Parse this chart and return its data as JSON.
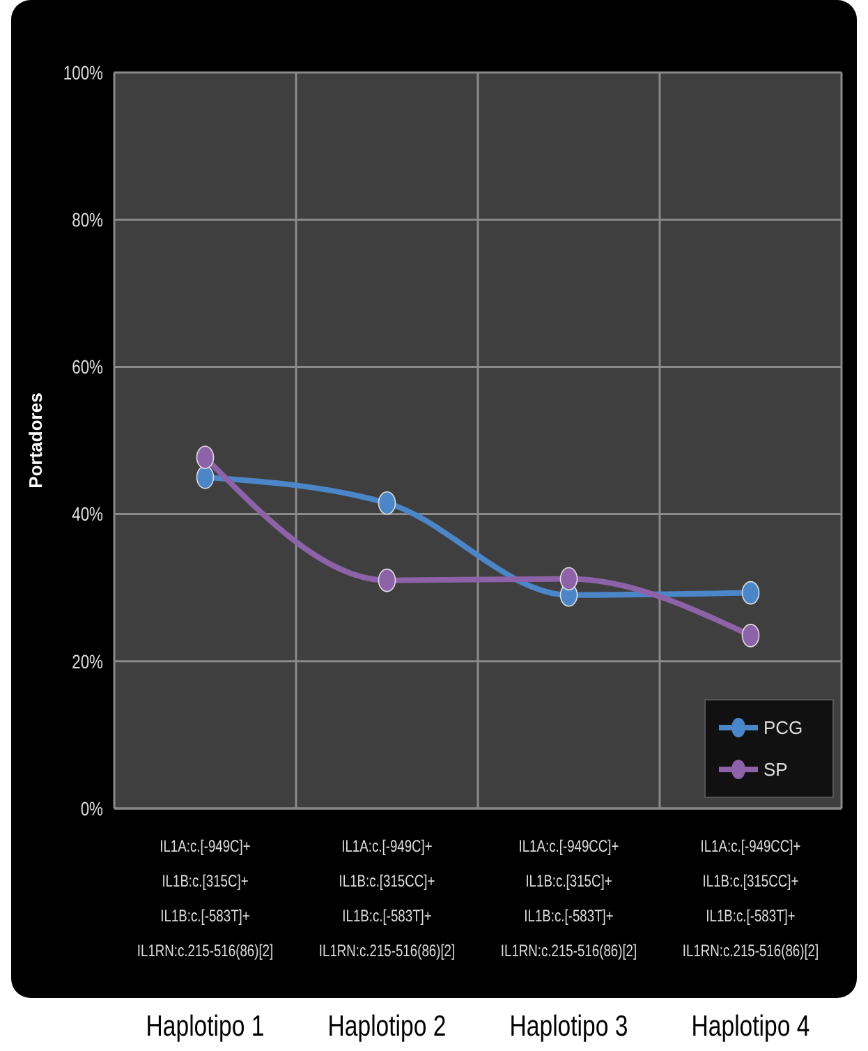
{
  "chart_data": {
    "type": "line",
    "ylabel": "Portadores",
    "categories": [
      "IL1A:c.[-949C]+\nIL1B:c.[315C]+\nIL1B:c.[-583T]+\nIL1RN:c.215-516(86)[2]",
      "IL1A:c.[-949C]+\nIL1B:c.[315CC]+\nIL1B:c.[-583T]+\nIL1RN:c.215-516(86)[2]",
      "IL1A:c.[-949CC]+\nIL1B:c.[315C]+\nIL1B:c.[-583T]+\nIL1RN:c.215-516(86)[2]",
      "IL1A:c.[-949CC]+\nIL1B:c.[315CC]+\nIL1B:c.[-583T]+\nIL1RN:c.215-516(86)[2]"
    ],
    "series": [
      {
        "name": "PCG",
        "color": "#4a86c8",
        "values": [
          45,
          41.5,
          29,
          29.3
        ]
      },
      {
        "name": "SP",
        "color": "#8e62a8",
        "values": [
          47.7,
          31,
          31.2,
          23.5
        ]
      }
    ],
    "ylim": [
      0,
      100
    ],
    "yticks": [
      {
        "value": 0,
        "label": "0%"
      },
      {
        "value": 20,
        "label": "20%"
      },
      {
        "value": 40,
        "label": "40%"
      },
      {
        "value": 60,
        "label": "60%"
      },
      {
        "value": 80,
        "label": "80%"
      },
      {
        "value": 100,
        "label": "100%"
      }
    ],
    "grid": true,
    "legend": "bottom right",
    "marker": "circle",
    "line_style": "solid",
    "annotations": [
      "Haplotipo 1",
      "Haplotipo 2",
      "Haplotipo 3",
      "Haplotipo 4"
    ]
  }
}
